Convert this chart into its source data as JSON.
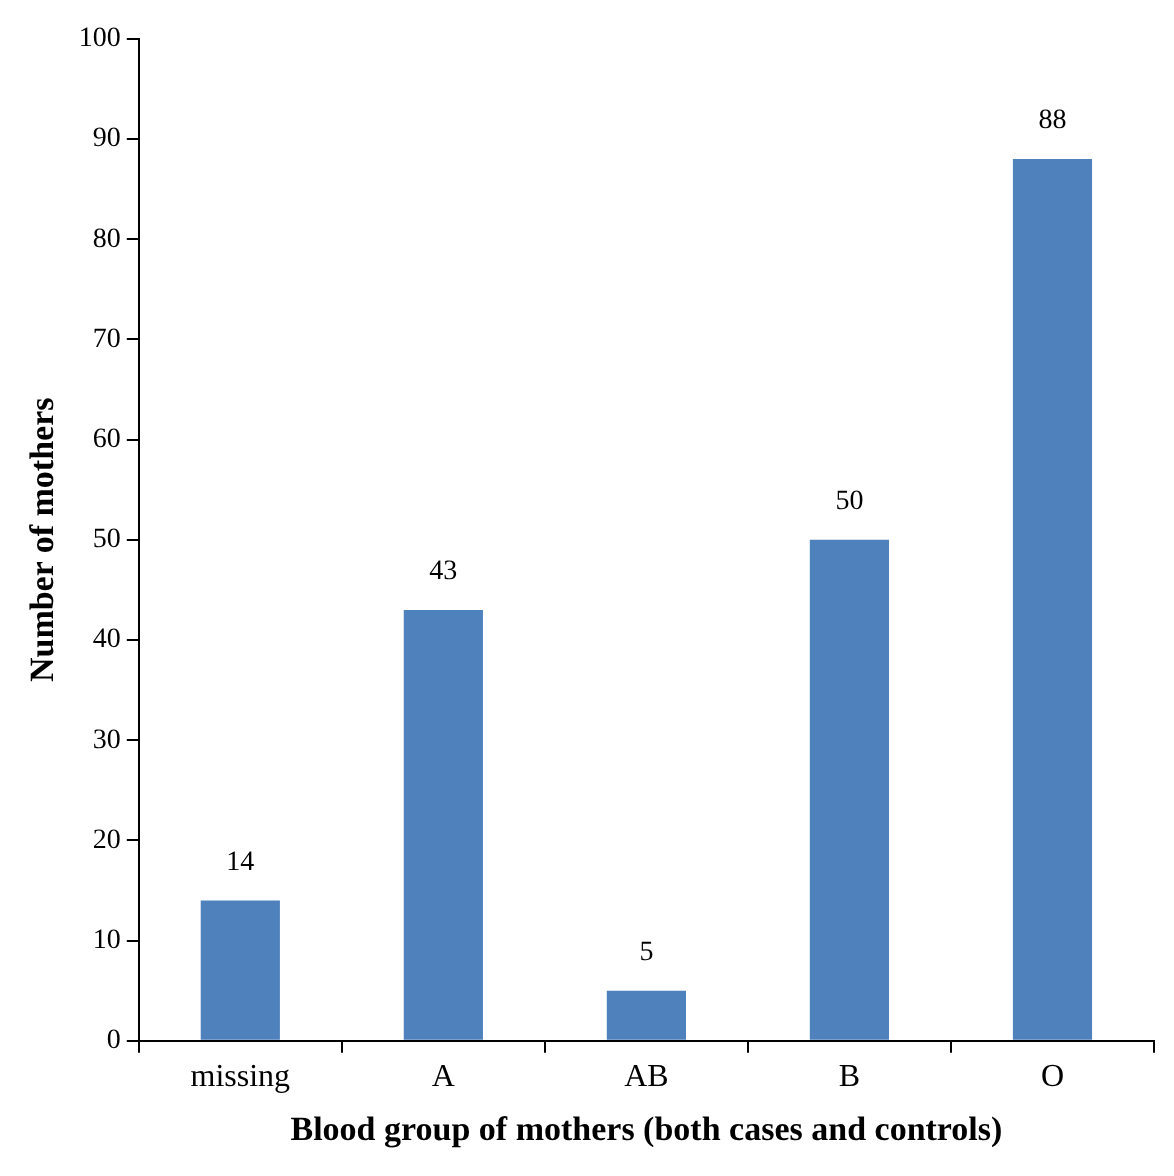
{
  "chart_data": {
    "type": "bar",
    "xlabel": "Blood group of mothers (both cases and controls)",
    "ylabel": "Number of mothers",
    "categories": [
      "missing",
      "A",
      "AB",
      "B",
      "O"
    ],
    "values": [
      14,
      43,
      5,
      50,
      88
    ],
    "color": "#4f81bd",
    "ylim": [
      0,
      100
    ],
    "yticks": [
      0,
      10,
      20,
      30,
      40,
      50,
      60,
      70,
      80,
      90,
      100
    ],
    "grid": false,
    "legend": false,
    "data_labels": true
  }
}
